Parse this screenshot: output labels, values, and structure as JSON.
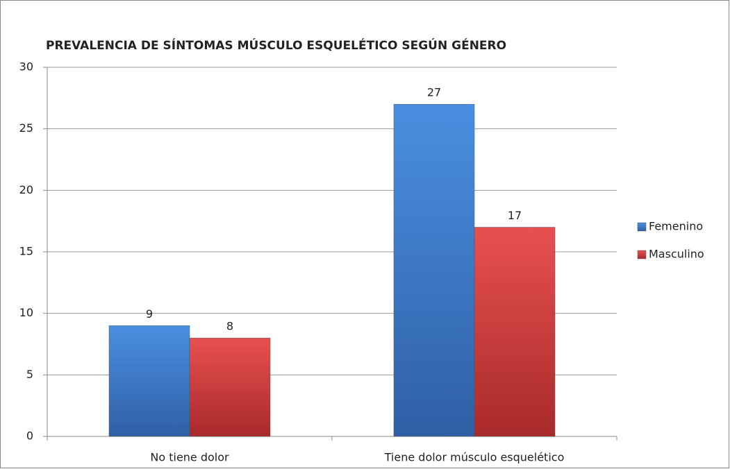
{
  "chart_data": {
    "type": "bar",
    "title": "PREVALENCIA DE SÍNTOMAS MÚSCULO ESQUELÉTICO SEGÚN GÉNERO",
    "categories": [
      "No tiene dolor",
      "Tiene dolor músculo esquelético"
    ],
    "series": [
      {
        "name": "Femenino",
        "color": "#3f7fd0",
        "values": [
          9,
          27
        ]
      },
      {
        "name": "Masculino",
        "color": "#d94444",
        "values": [
          8,
          17
        ]
      }
    ],
    "ylim": [
      0,
      30
    ],
    "yticks": [
      0,
      5,
      10,
      15,
      20,
      25,
      30
    ],
    "grid": true,
    "legend": "right"
  }
}
